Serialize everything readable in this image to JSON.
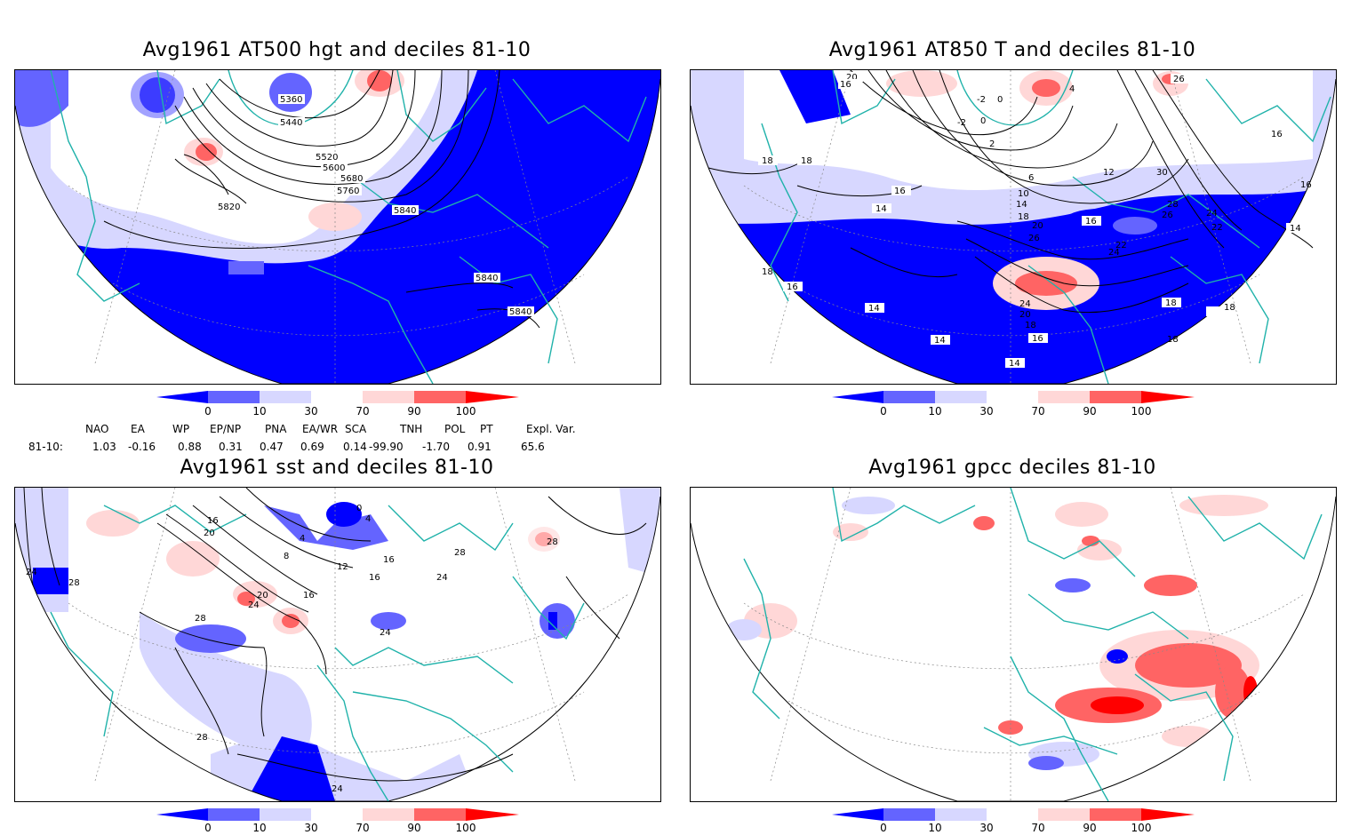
{
  "panels": [
    {
      "id": "hgt",
      "title": "Avg1961 AT500 hgt and deciles 81-10",
      "contour_labels": [
        "5360",
        "5440",
        "5520",
        "5600",
        "5680",
        "5760",
        "5820",
        "5840",
        "5840",
        "5840"
      ]
    },
    {
      "id": "t850",
      "title": "Avg1961 AT850 T and deciles 81-10",
      "contour_labels": [
        "20",
        "16",
        "-2",
        "0",
        "-2",
        "0",
        "2",
        "4",
        "26",
        "16",
        "18",
        "18",
        "16",
        "6",
        "12",
        "30",
        "10",
        "14",
        "28",
        "16",
        "14",
        "18",
        "20",
        "16",
        "26",
        "24",
        "22",
        "26",
        "22",
        "24",
        "14",
        "18",
        "16",
        "14",
        "24",
        "20",
        "18",
        "18",
        "18",
        "16",
        "14",
        "14",
        "18"
      ]
    },
    {
      "id": "sst",
      "title": "Avg1961 sst and deciles 81-10",
      "contour_labels": [
        "24",
        "28",
        "16",
        "20",
        "4",
        "0",
        "4",
        "8",
        "12",
        "16",
        "16",
        "20",
        "24",
        "28",
        "16",
        "24",
        "24",
        "28",
        "28",
        "28",
        "24"
      ]
    },
    {
      "id": "gpcc",
      "title": "Avg1961 gpcc deciles 81-10",
      "contour_labels": []
    }
  ],
  "colorbar": {
    "labels": [
      "0",
      "10",
      "30",
      "70",
      "90",
      "100"
    ],
    "colors": [
      "#0000ff",
      "#6464ff",
      "#d7d7ff",
      "#ffffff",
      "#ffd7d7",
      "#ff6464",
      "#ff0000"
    ]
  },
  "teleconnections": {
    "row_label": "81-10:",
    "indices": [
      {
        "name": "NAO",
        "value": "1.03"
      },
      {
        "name": "EA",
        "value": "-0.16"
      },
      {
        "name": "WP",
        "value": "0.88"
      },
      {
        "name": "EP/NP",
        "value": "0.31"
      },
      {
        "name": "PNA",
        "value": "0.47"
      },
      {
        "name": "EA/WR",
        "value": "0.69"
      },
      {
        "name": "SCA",
        "value": "0.14"
      },
      {
        "name": "TNH",
        "value": "-99.90"
      },
      {
        "name": "POL",
        "value": "-1.70"
      },
      {
        "name": "PT",
        "value": "0.91"
      },
      {
        "name": "Expl. Var.",
        "value": "65.6"
      }
    ]
  },
  "colors": {
    "coast": "#20b2aa",
    "contour": "#000000",
    "grid": "#888888"
  }
}
